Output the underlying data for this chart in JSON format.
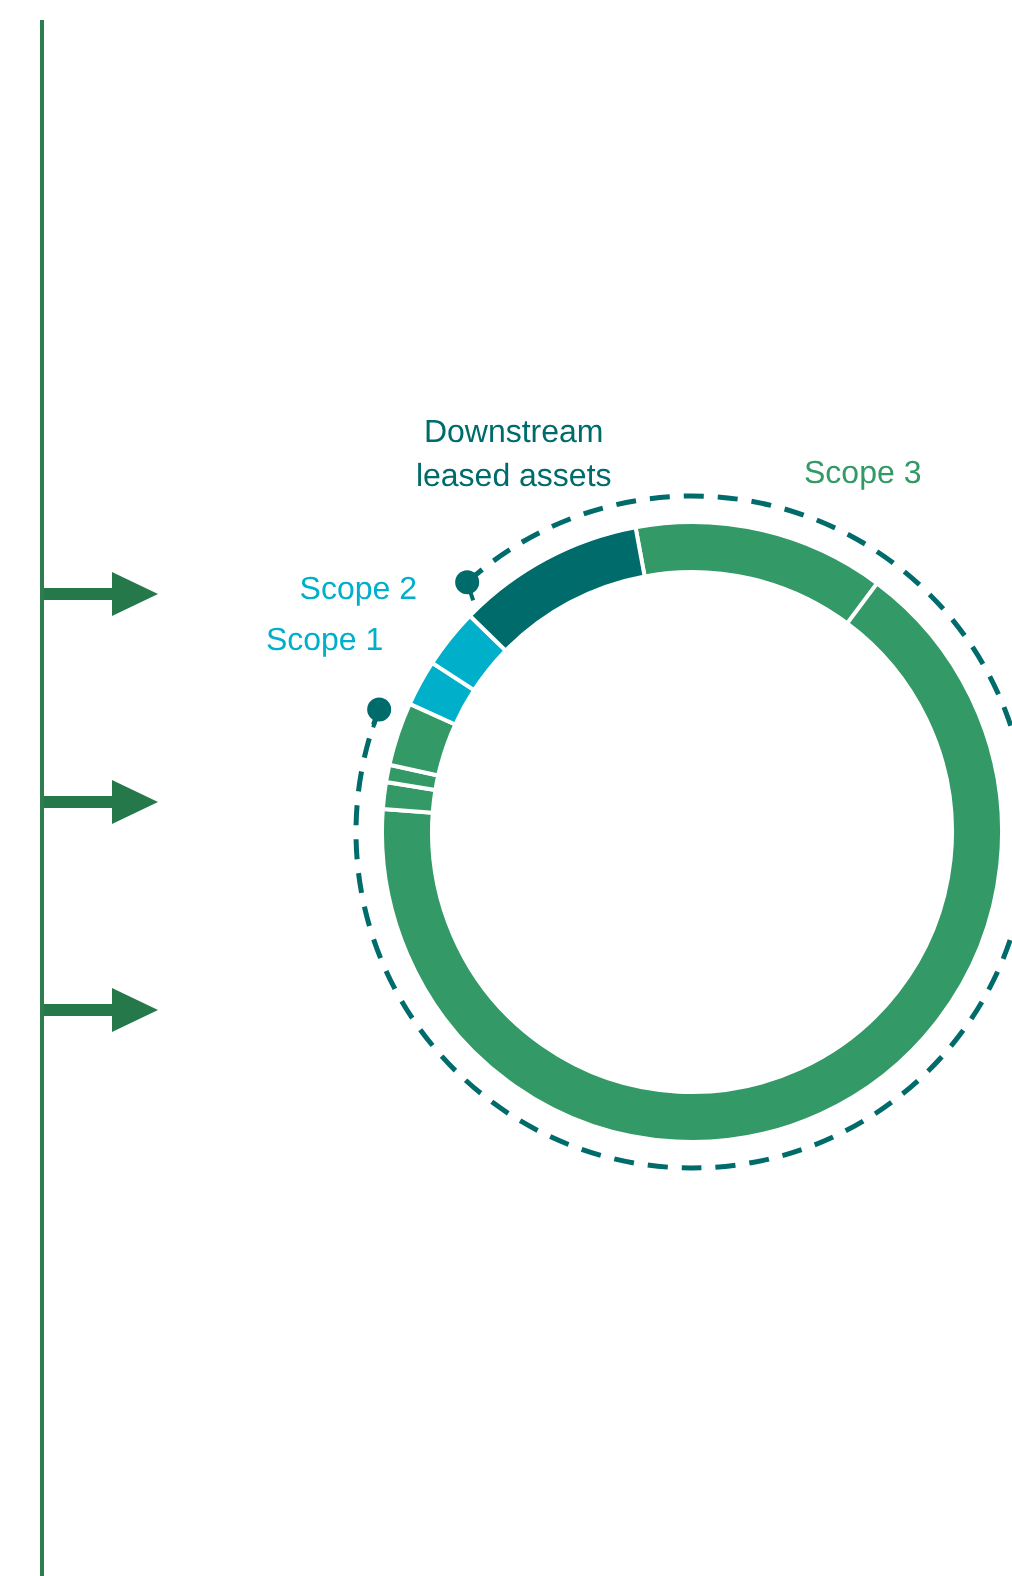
{
  "chart_data": {
    "type": "donut",
    "categories": [
      null,
      null,
      null,
      null,
      null,
      "Scope 1",
      "Scope 2",
      "Downstream leased assets"
    ],
    "values": [
      13.1,
      66.0,
      1.4,
      0.9,
      3.3,
      2.4,
      3.1,
      9.8
    ],
    "colors": [
      "#339966",
      "#339966",
      "#339966",
      "#339966",
      "#339966",
      "#00b0ca",
      "#00b0ca",
      "#006b6b"
    ],
    "annotations": [
      "Scope 3"
    ],
    "legend": false
  }
}
